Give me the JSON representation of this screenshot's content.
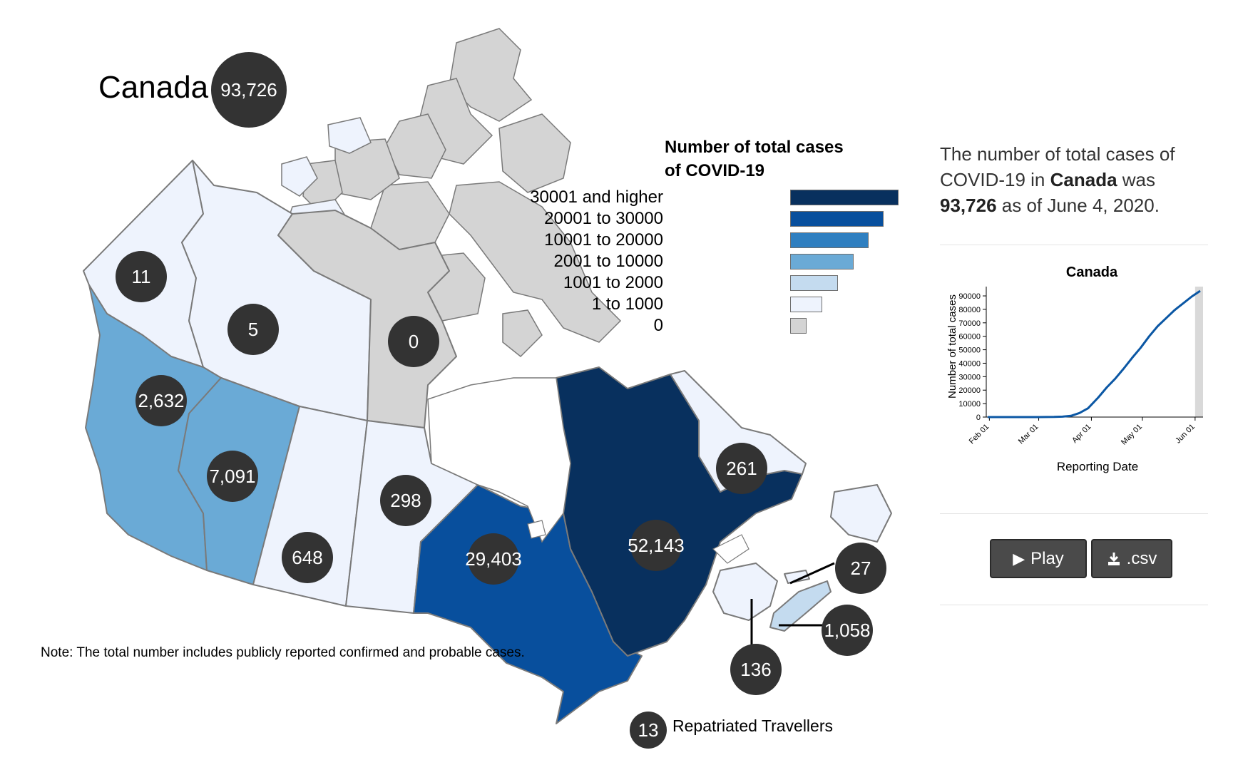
{
  "map": {
    "title": "Canada",
    "total_label": "93,726",
    "note": "Note: The total number includes publicly reported confirmed and probable cases.",
    "provinces": [
      {
        "name": "Yukon",
        "label": "11",
        "color": "#eef3fd"
      },
      {
        "name": "Northwest Territories",
        "label": "5",
        "color": "#eef3fd"
      },
      {
        "name": "Nunavut",
        "label": "0",
        "color": "#d4d4d4"
      },
      {
        "name": "British Columbia",
        "label": "2,632",
        "color": "#6aaad6"
      },
      {
        "name": "Alberta",
        "label": "7,091",
        "color": "#6aaad6"
      },
      {
        "name": "Saskatchewan",
        "label": "648",
        "color": "#eef3fd"
      },
      {
        "name": "Manitoba",
        "label": "298",
        "color": "#eef3fd"
      },
      {
        "name": "Ontario",
        "label": "29,403",
        "color": "#084f9d"
      },
      {
        "name": "Quebec",
        "label": "52,143",
        "color": "#08305e"
      },
      {
        "name": "Newfoundland and Labrador",
        "label": "261",
        "color": "#eef3fd"
      },
      {
        "name": "Prince Edward Island",
        "label": "27",
        "color": "#eef3fd"
      },
      {
        "name": "Nova Scotia",
        "label": "1,058",
        "color": "#c4dbef"
      },
      {
        "name": "New Brunswick",
        "label": "136",
        "color": "#eef3fd"
      }
    ],
    "repatriated": {
      "count": "13",
      "label": "Repatriated Travellers"
    }
  },
  "legend": {
    "title_line1": "Number of total cases",
    "title_line2": "of COVID-19",
    "items": [
      {
        "label": "30001 and higher",
        "color": "#08305e"
      },
      {
        "label": "20001 to 30000",
        "color": "#084f9d"
      },
      {
        "label": "10001 to 20000",
        "color": "#2f7fc0"
      },
      {
        "label": "2001 to 10000",
        "color": "#6aaad6"
      },
      {
        "label": "1001 to 2000",
        "color": "#c4dbef"
      },
      {
        "label": "1 to 1000",
        "color": "#eef3fd"
      },
      {
        "label": "0",
        "color": "#d4d4d4"
      }
    ]
  },
  "summary": {
    "prefix": "The number of total cases of COVID-19 in ",
    "region": "Canada",
    "middle": " was ",
    "count": "93,726",
    "suffix": " as of June 4, 2020."
  },
  "buttons": {
    "play_label": "Play",
    "csv_label": ".csv"
  },
  "chart_data": {
    "type": "line",
    "title": "Canada",
    "xlabel": "Reporting Date",
    "ylabel": "Number of total cases",
    "x_ticks": [
      "Feb 01",
      "Mar 01",
      "Apr 01",
      "May 01",
      "Jun 01"
    ],
    "y_ticks": [
      0,
      10000,
      20000,
      30000,
      40000,
      50000,
      60000,
      70000,
      80000,
      90000
    ],
    "ylim": [
      0,
      93726
    ],
    "series": [
      {
        "color": "#0b57a4",
        "x": [
          "Jan 31",
          "Feb 15",
          "Mar 01",
          "Mar 10",
          "Mar 15",
          "Mar 20",
          "Mar 25",
          "Mar 30",
          "Apr 05",
          "Apr 10",
          "Apr 15",
          "Apr 20",
          "Apr 25",
          "Apr 30",
          "May 05",
          "May 10",
          "May 15",
          "May 20",
          "May 25",
          "May 30",
          "Jun 04"
        ],
        "y": [
          0,
          5,
          20,
          80,
          300,
          900,
          3000,
          6500,
          14500,
          22000,
          28500,
          36000,
          44000,
          51500,
          60000,
          67500,
          73500,
          79500,
          84500,
          89500,
          93726
        ]
      }
    ],
    "highlight": "Jun 01 – Jun 04"
  }
}
